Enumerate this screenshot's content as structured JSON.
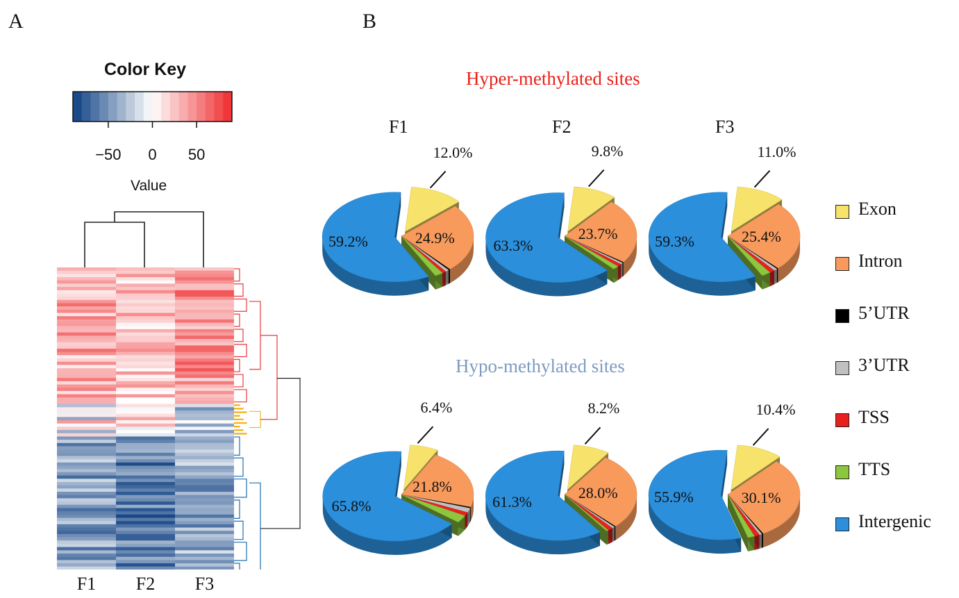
{
  "panels": {
    "a": "A",
    "b": "B"
  },
  "color_key": {
    "title": "Color Key",
    "xlabel": "Value",
    "ticks": [
      "−50",
      "0",
      "50"
    ],
    "tick_values": [
      -50,
      0,
      50
    ],
    "range": [
      -90,
      90
    ],
    "low_color": "#0d3f82",
    "mid_color": "#ffffff",
    "high_color": "#ee2a2d"
  },
  "heatmap": {
    "columns": [
      "F1",
      "F2",
      "F3"
    ],
    "cluster_colors": {
      "up": "#e7393f",
      "mixed": "#f5b31c",
      "down": "#1f6fb2"
    }
  },
  "hyper_title": "Hyper-methylated sites",
  "hypo_title": "Hypo-methylated sites",
  "hyper_color": "#e8211c",
  "hypo_color": "#7d9cc0",
  "chart_data": [
    {
      "type": "pie",
      "title": "Hyper-methylated sites",
      "pies": [
        {
          "name": "F1",
          "labels": {
            "Exon": "12.0%",
            "Intron": "24.9%",
            "Intergenic": "59.2%"
          },
          "values": {
            "Exon": 12.0,
            "Intron": 24.9,
            "5'UTR": 0.4,
            "3'UTR": 0.8,
            "TSS": 0.9,
            "TTS": 1.8,
            "Intergenic": 59.2
          }
        },
        {
          "name": "F2",
          "labels": {
            "Exon": "9.8%",
            "Intron": "23.7%",
            "Intergenic": "63.3%"
          },
          "values": {
            "Exon": 9.8,
            "Intron": 23.7,
            "5'UTR": 0.3,
            "3'UTR": 0.6,
            "TSS": 1.0,
            "TTS": 1.3,
            "Intergenic": 63.3
          }
        },
        {
          "name": "F3",
          "labels": {
            "Exon": "11.0%",
            "Intron": "25.4%",
            "Intergenic": "59.3%"
          },
          "values": {
            "Exon": 11.0,
            "Intron": 25.4,
            "5'UTR": 0.3,
            "3'UTR": 0.8,
            "TSS": 1.2,
            "TTS": 2.0,
            "Intergenic": 59.3
          }
        }
      ]
    },
    {
      "type": "pie",
      "title": "Hypo-methylated sites",
      "pies": [
        {
          "name": "F1",
          "labels": {
            "Exon": "6.4%",
            "Intron": "21.8%",
            "Intergenic": "65.8%"
          },
          "values": {
            "Exon": 6.4,
            "Intron": 21.8,
            "5'UTR": 0.4,
            "3'UTR": 1.6,
            "TSS": 1.3,
            "TTS": 2.7,
            "Intergenic": 65.8
          }
        },
        {
          "name": "F2",
          "labels": {
            "Exon": "8.2%",
            "Intron": "28.0%",
            "Intergenic": "61.3%"
          },
          "values": {
            "Exon": 8.2,
            "Intron": 28.0,
            "5'UTR": 0.3,
            "3'UTR": 0.6,
            "TSS": 1.2,
            "TTS": 0.4,
            "Intergenic": 61.3
          }
        },
        {
          "name": "F3",
          "labels": {
            "Exon": "10.4%",
            "Intron": "30.1%",
            "Intergenic": "55.9%"
          },
          "values": {
            "Exon": 10.4,
            "Intron": 30.1,
            "5'UTR": 0.3,
            "3'UTR": 0.6,
            "TSS": 1.2,
            "TTS": 1.5,
            "Intergenic": 55.9
          }
        }
      ]
    }
  ],
  "legend": [
    {
      "label": "Exon",
      "color": "#f7e26b"
    },
    {
      "label": "Intron",
      "color": "#f79a5c"
    },
    {
      "label": "5’UTR",
      "color": "#000000"
    },
    {
      "label": "3’UTR",
      "color": "#c0c0c0"
    },
    {
      "label": "TSS",
      "color": "#e8211c"
    },
    {
      "label": "TTS",
      "color": "#8dc63f"
    },
    {
      "label": "Intergenic",
      "color": "#2b8fdc"
    }
  ]
}
